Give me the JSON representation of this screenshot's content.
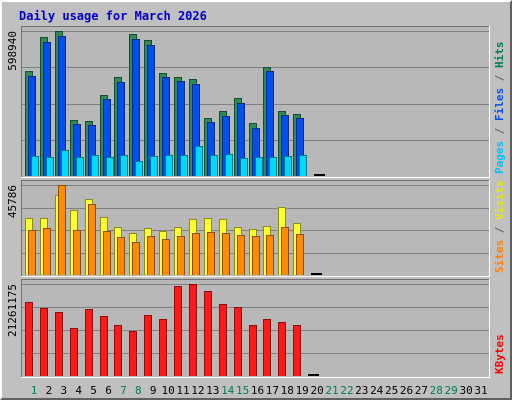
{
  "chart_data": {
    "type": "bar",
    "title": "Daily usage for March 2026",
    "categories": [
      "1",
      "2",
      "3",
      "4",
      "5",
      "6",
      "7",
      "8",
      "9",
      "10",
      "11",
      "12",
      "13",
      "14",
      "15",
      "16",
      "17",
      "18",
      "19",
      "20",
      "21",
      "22",
      "23",
      "24",
      "25",
      "26",
      "27",
      "28",
      "29",
      "30",
      "31"
    ],
    "weekend_days": [
      "1",
      "7",
      "8",
      "14",
      "15",
      "21",
      "22",
      "28",
      "29"
    ],
    "panels": [
      {
        "name": "hits-files-pages",
        "max_label": "598940",
        "ymax": 598940,
        "legend": [
          {
            "text": "Pages",
            "color": "#00c0ff"
          },
          {
            "text": " / ",
            "color": "#606060"
          },
          {
            "text": "Files",
            "color": "#0050f0"
          },
          {
            "text": " / ",
            "color": "#606060"
          },
          {
            "text": "Hits",
            "color": "#00804c"
          }
        ],
        "series": [
          {
            "name": "Hits",
            "color": "#2e8b57",
            "values": [
              434000,
              574000,
              598940,
              233000,
              227000,
              335000,
              409000,
              586000,
              562000,
              427000,
              410000,
              401000,
              241000,
              267000,
              321000,
              218000,
              451000,
              269000,
              257000,
              0
            ]
          },
          {
            "name": "Files",
            "color": "#0050f0",
            "values": [
              415000,
              555000,
              580000,
              215000,
              210000,
              317000,
              390000,
              567000,
              543000,
              408000,
              391000,
              382000,
              223000,
              248000,
              302000,
              198000,
              433000,
              251000,
              238000,
              0
            ]
          },
          {
            "name": "Pages",
            "color": "#00d8ff",
            "values": [
              84000,
              79000,
              106000,
              78000,
              88000,
              78000,
              88000,
              63000,
              83000,
              88000,
              85000,
              122000,
              85000,
              89000,
              76000,
              77000,
              78000,
              83000,
              85000,
              6000
            ]
          }
        ]
      },
      {
        "name": "visits-sites",
        "max_label": "45786",
        "ymax": 45786,
        "legend": [
          {
            "text": "Sites",
            "color": "#ff8000"
          },
          {
            "text": " / ",
            "color": "#606060"
          },
          {
            "text": "Visits",
            "color": "#e8e800"
          }
        ],
        "series": [
          {
            "name": "Visits",
            "color": "#ffff30",
            "values": [
              29000,
              29000,
              40500,
              33000,
              38500,
              29500,
              24500,
              21500,
              24000,
              22500,
              24500,
              28500,
              29000,
              28500,
              24500,
              23500,
              25000,
              34700,
              26500,
              600
            ]
          },
          {
            "name": "Sites",
            "color": "#ff8c00",
            "values": [
              23000,
              24000,
              45786,
              23000,
              36000,
              22500,
              19500,
              17000,
              20000,
              18500,
              20000,
              21500,
              22000,
              21500,
              20500,
              20000,
              20500,
              24500,
              21000,
              1200
            ]
          }
        ]
      },
      {
        "name": "kbytes",
        "max_label": "21261175",
        "ymax": 21261175,
        "legend": [
          {
            "text": "KBytes",
            "color": "#ff0000"
          }
        ],
        "series": [
          {
            "name": "KBytes",
            "color": "#ff1a1a",
            "values": [
              17000000,
              15700000,
              14700000,
              11200000,
              15500000,
              13800000,
              11800000,
              10500000,
              14000000,
              13100000,
              20700000,
              21261175,
              19600000,
              16700000,
              16000000,
              11900000,
              13200000,
              12500000,
              11700000,
              450000
            ]
          }
        ]
      }
    ]
  }
}
